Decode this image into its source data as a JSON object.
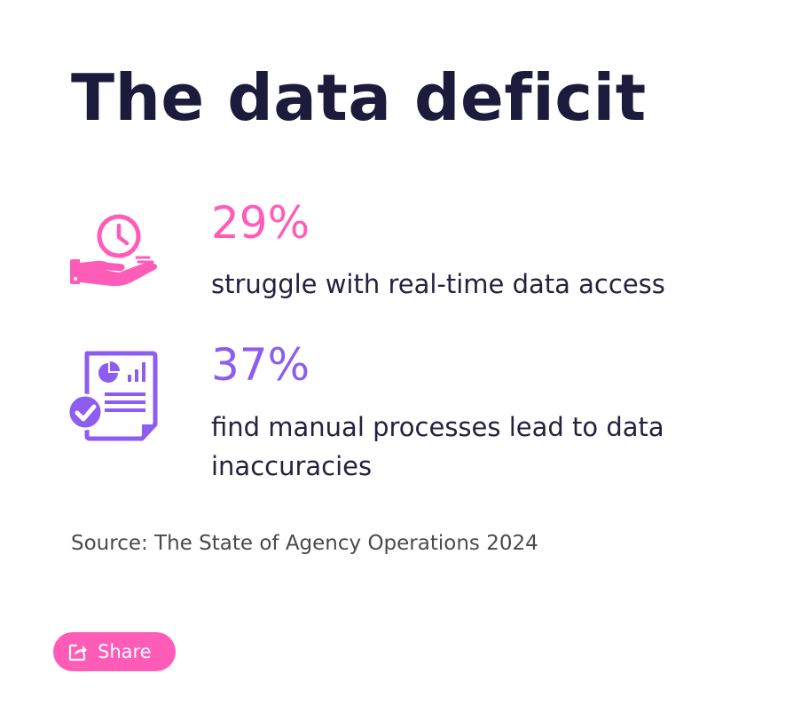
{
  "title": "The data deficit",
  "stats": [
    {
      "value": "29%",
      "text": "struggle with real-time data access",
      "icon": "hand-clock-icon",
      "color": "#ff5cb8"
    },
    {
      "value": "37%",
      "text": "find manual processes lead to data inaccuracies",
      "icon": "report-check-icon",
      "color": "#8d5cf0"
    }
  ],
  "source": "Source: The State of Agency Operations 2024",
  "share": {
    "label": "Share",
    "icon": "share-icon",
    "color": "#ff5cb8"
  },
  "colors": {
    "title": "#1c1b3b",
    "body_text": "#24223d",
    "source_text": "#4a4a4a",
    "pink": "#ff5cb8",
    "purple": "#8d5cf0"
  }
}
